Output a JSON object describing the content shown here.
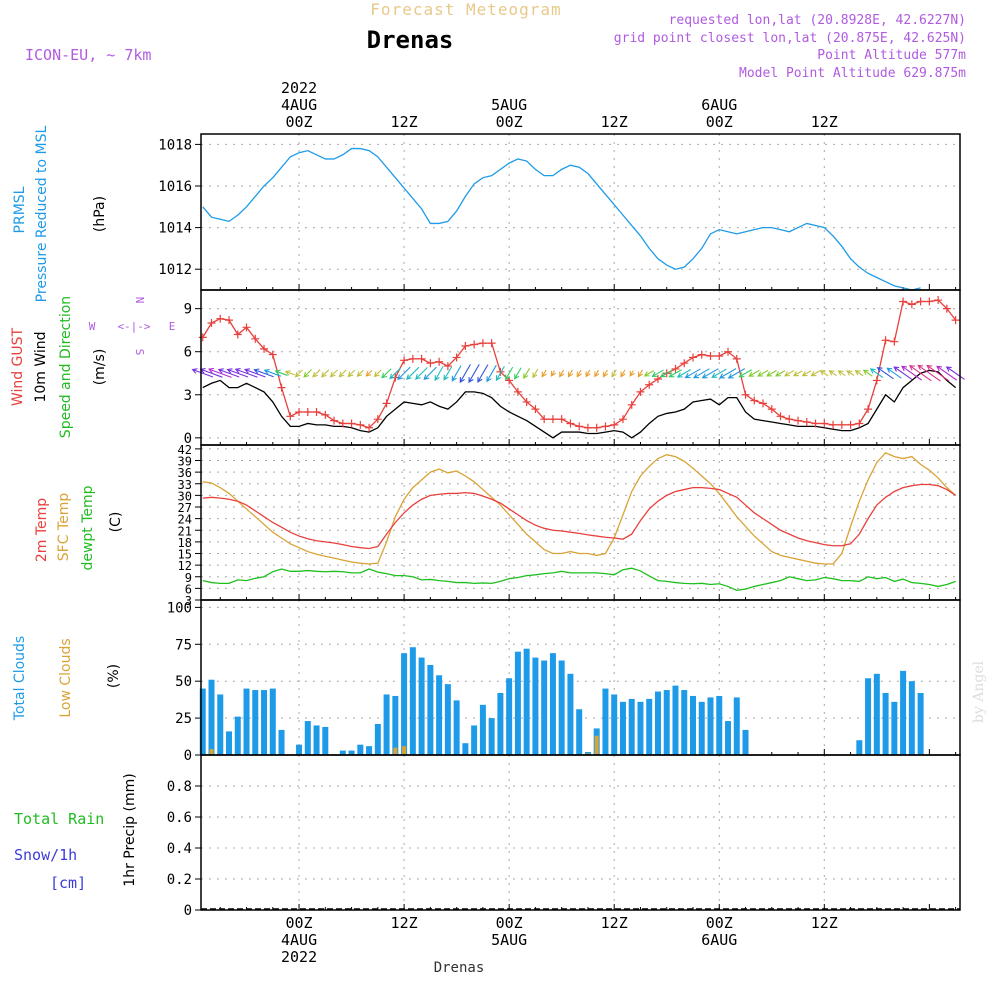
{
  "header": {
    "title": "Forecast Meteogram",
    "location": "Drenas",
    "model": "ICON-EU, ~ 7km",
    "requested": "requested lon,lat (20.8928E, 42.6227N)",
    "grid_point": "grid point closest lon,lat (20.875E, 42.625N)",
    "point_altitude": "Point Altitude 577m",
    "model_altitude": "Model Point Altitude 629.875m",
    "watermark": "by Angel"
  },
  "colors": {
    "pressure": "#1e9be8",
    "gust": "#e8403c",
    "wind": "#000000",
    "temp2m": "#e8403c",
    "sfc": "#d9a336",
    "dewpt": "#1fbf1f",
    "clouds": "#1e9be8",
    "lowclouds": "#d9a336",
    "purple": "#b05be0",
    "green": "#22bb22",
    "blue": "#3b3bdc"
  },
  "axis_time": {
    "top": [
      {
        "t": 0,
        "lines": [
          "2022",
          "4AUG",
          "00Z"
        ]
      },
      {
        "t": 12,
        "lines": [
          "12Z"
        ]
      },
      {
        "t": 24,
        "lines": [
          "5AUG",
          "00Z"
        ]
      },
      {
        "t": 36,
        "lines": [
          "12Z"
        ]
      },
      {
        "t": 48,
        "lines": [
          "6AUG",
          "00Z"
        ]
      },
      {
        "t": 60,
        "lines": [
          "12Z"
        ]
      }
    ],
    "bottom": [
      {
        "t": 0,
        "lines": [
          "00Z",
          "4AUG",
          "2022"
        ]
      },
      {
        "t": 12,
        "lines": [
          "12Z"
        ]
      },
      {
        "t": 24,
        "lines": [
          "00Z",
          "5AUG"
        ]
      },
      {
        "t": 36,
        "lines": [
          "12Z"
        ]
      },
      {
        "t": 48,
        "lines": [
          "00Z",
          "6AUG"
        ]
      },
      {
        "t": 60,
        "lines": [
          "12Z"
        ]
      }
    ],
    "bottom_label": "Drenas"
  },
  "panels_text": {
    "pressure": {
      "label1": "PRMSL",
      "label2": "Pressure Reduced to MSL",
      "unit": "(hPa)"
    },
    "wind": {
      "gust": "Wind GUST",
      "wind": "10m Wind",
      "dir": "Speed and Direction",
      "unit": "(m/s)",
      "compass_n": "N",
      "compass_s": "S",
      "compass_w": "W",
      "compass_e": "E"
    },
    "temp": {
      "t2m": "2m Temp",
      "sfc": "SFC Temp",
      "dew": "dewpt Temp",
      "unit": "(C)"
    },
    "clouds": {
      "total": "Total Clouds",
      "low": "Low Clouds",
      "unit": "(%)"
    },
    "precip": {
      "rain": "Total  Rain",
      "snow": "Snow/1h",
      "cm": "[cm]",
      "unit": "1hr Precip (mm)"
    }
  },
  "chart_data": [
    {
      "type": "line",
      "name": "pressure",
      "x_start": -11,
      "x_step": 1,
      "ylim": [
        1011,
        1018.5
      ],
      "yticks": [
        "1012",
        "1014",
        "1016",
        "1018"
      ],
      "values": [
        1015.0,
        1014.5,
        1014.4,
        1014.3,
        1014.6,
        1015.0,
        1015.5,
        1016.0,
        1016.4,
        1016.9,
        1017.4,
        1017.6,
        1017.7,
        1017.5,
        1017.3,
        1017.3,
        1017.5,
        1017.8,
        1017.8,
        1017.7,
        1017.4,
        1016.9,
        1016.4,
        1015.9,
        1015.4,
        1014.9,
        1014.2,
        1014.2,
        1014.3,
        1014.8,
        1015.5,
        1016.1,
        1016.4,
        1016.5,
        1016.8,
        1017.1,
        1017.3,
        1017.2,
        1016.8,
        1016.5,
        1016.5,
        1016.8,
        1017.0,
        1016.9,
        1016.6,
        1016.1,
        1015.6,
        1015.1,
        1014.6,
        1014.1,
        1013.6,
        1013.0,
        1012.5,
        1012.2,
        1012.0,
        1012.1,
        1012.5,
        1013.0,
        1013.7,
        1013.9,
        1013.8,
        1013.7,
        1013.8,
        1013.9,
        1014.0,
        1014.0,
        1013.9,
        1013.8,
        1014.0,
        1014.2,
        1014.1,
        1014.0,
        1013.6,
        1013.1,
        1012.5,
        1012.1,
        1011.8,
        1011.6,
        1011.4,
        1011.2,
        1011.1,
        1011.0,
        1011.1
      ]
    },
    {
      "type": "line",
      "name": "wind",
      "x_start": -11,
      "x_step": 1,
      "ylim": [
        -0.5,
        10.3
      ],
      "yticks": [
        "0",
        "3",
        "6",
        "9"
      ],
      "gust": [
        7.0,
        8.0,
        8.3,
        8.2,
        7.2,
        7.7,
        6.9,
        6.2,
        5.8,
        3.5,
        1.5,
        1.8,
        1.8,
        1.8,
        1.6,
        1.2,
        1.0,
        1.0,
        0.9,
        0.7,
        1.3,
        2.4,
        4.2,
        5.4,
        5.5,
        5.5,
        5.2,
        5.3,
        5.0,
        5.6,
        6.4,
        6.5,
        6.6,
        6.6,
        4.6,
        4.0,
        3.2,
        2.5,
        2.0,
        1.3,
        1.3,
        1.3,
        1.0,
        0.8,
        0.7,
        0.7,
        0.8,
        0.9,
        1.3,
        2.3,
        3.2,
        3.7,
        4.1,
        4.5,
        4.8,
        5.2,
        5.6,
        5.8,
        5.7,
        5.7,
        6.0,
        5.5,
        3.0,
        2.6,
        2.4,
        2.0,
        1.5,
        1.3,
        1.2,
        1.1,
        1.0,
        1.0,
        0.9,
        0.9,
        0.9,
        1.0,
        2.0,
        4.0,
        6.8,
        6.7,
        9.5,
        9.3,
        9.5,
        9.5,
        9.6,
        9.0,
        8.2
      ],
      "wind": [
        3.5,
        3.8,
        4.0,
        3.5,
        3.5,
        3.8,
        3.5,
        3.2,
        2.5,
        1.5,
        0.8,
        0.8,
        1.0,
        0.9,
        0.9,
        0.8,
        0.8,
        0.7,
        0.5,
        0.4,
        0.7,
        1.5,
        2.0,
        2.5,
        2.4,
        2.3,
        2.5,
        2.2,
        2.0,
        2.5,
        3.2,
        3.2,
        3.1,
        2.8,
        2.2,
        1.8,
        1.5,
        1.2,
        0.8,
        0.4,
        0.0,
        0.4,
        0.4,
        0.4,
        0.3,
        0.3,
        0.4,
        0.5,
        0.4,
        0.0,
        0.4,
        1.0,
        1.5,
        1.7,
        1.8,
        2.0,
        2.5,
        2.6,
        2.7,
        2.3,
        2.8,
        2.8,
        1.8,
        1.3,
        1.2,
        1.1,
        1.0,
        0.9,
        0.8,
        0.8,
        0.8,
        0.7,
        0.6,
        0.5,
        0.5,
        0.7,
        1.0,
        2.0,
        3.0,
        2.5,
        3.5,
        4.0,
        4.5,
        4.7,
        4.6,
        4.0,
        3.5
      ]
    },
    {
      "type": "line",
      "name": "temperature",
      "x_start": -11,
      "x_step": 1,
      "ylim": [
        3,
        43
      ],
      "yticks": [
        "3",
        "6",
        "9",
        "12",
        "15",
        "18",
        "21",
        "24",
        "27",
        "30",
        "33",
        "36",
        "39",
        "42"
      ],
      "t2m": [
        29.3,
        29.5,
        29.3,
        29.0,
        28.5,
        27.5,
        26.0,
        24.5,
        23.0,
        21.8,
        20.5,
        19.5,
        18.8,
        18.3,
        18.0,
        17.7,
        17.3,
        16.8,
        16.5,
        16.3,
        16.8,
        20.0,
        23.0,
        25.5,
        27.5,
        29.0,
        30.0,
        30.3,
        30.5,
        30.5,
        30.7,
        30.5,
        29.8,
        29.0,
        28.0,
        26.5,
        25.0,
        23.5,
        22.3,
        21.5,
        21.0,
        20.8,
        20.5,
        20.2,
        19.8,
        19.5,
        19.2,
        19.0,
        18.7,
        20.0,
        23.5,
        26.5,
        28.5,
        30.0,
        31.0,
        31.5,
        32.0,
        32.0,
        31.8,
        31.5,
        30.5,
        29.5,
        27.5,
        25.5,
        24.0,
        22.5,
        21.0,
        20.0,
        19.0,
        18.3,
        17.8,
        17.3,
        17.0,
        17.0,
        17.5,
        20.0,
        24.0,
        27.5,
        29.5,
        31.0,
        32.0,
        32.5,
        32.8,
        32.8,
        32.5,
        31.5,
        30.0
      ],
      "sfc": [
        33.5,
        33.2,
        32.0,
        30.5,
        28.5,
        26.5,
        24.5,
        22.5,
        20.5,
        19.0,
        17.5,
        16.5,
        15.5,
        14.8,
        14.3,
        13.8,
        13.3,
        12.8,
        12.5,
        12.3,
        12.5,
        18.0,
        24.5,
        29.0,
        32.0,
        34.0,
        36.0,
        36.8,
        35.8,
        36.3,
        35.0,
        33.5,
        31.5,
        29.5,
        27.5,
        25.0,
        22.5,
        20.0,
        18.0,
        16.0,
        15.0,
        15.0,
        15.5,
        15.0,
        15.0,
        14.5,
        15.0,
        19.0,
        25.0,
        31.0,
        35.0,
        37.5,
        39.5,
        40.5,
        40.0,
        38.8,
        37.0,
        35.0,
        33.0,
        30.5,
        27.5,
        24.5,
        22.0,
        19.5,
        17.5,
        15.5,
        14.5,
        14.0,
        13.5,
        13.0,
        12.5,
        12.3,
        12.3,
        15.0,
        22.0,
        28.5,
        34.0,
        38.5,
        41.0,
        40.0,
        39.5,
        40.0,
        38.0,
        36.5,
        34.5,
        32.0,
        30.0
      ],
      "dewpt": [
        8.0,
        7.5,
        7.3,
        7.3,
        8.2,
        8.0,
        8.6,
        9.0,
        10.3,
        11.0,
        10.4,
        10.4,
        10.6,
        10.4,
        10.3,
        10.4,
        10.3,
        10.0,
        10.0,
        11.0,
        10.2,
        9.8,
        9.3,
        9.3,
        9.0,
        8.2,
        8.3,
        8.0,
        7.8,
        7.5,
        7.5,
        7.3,
        7.4,
        7.3,
        7.8,
        8.5,
        8.8,
        9.3,
        9.5,
        9.8,
        10.0,
        10.4,
        10.0,
        10.0,
        10.0,
        10.0,
        9.8,
        9.5,
        10.8,
        11.2,
        10.5,
        9.2,
        8.0,
        7.8,
        7.5,
        7.3,
        7.2,
        7.3,
        7.0,
        7.2,
        6.5,
        5.5,
        5.8,
        6.5,
        7.0,
        7.5,
        8.0,
        9.0,
        8.5,
        8.0,
        8.2,
        8.8,
        8.5,
        8.0,
        8.0,
        7.8,
        9.0,
        8.5,
        8.8,
        7.8,
        8.4,
        7.5,
        7.3,
        7.0,
        6.5,
        7.0,
        7.8
      ]
    },
    {
      "type": "bar",
      "name": "clouds",
      "x_start": -11,
      "x_step": 1,
      "ylim": [
        0,
        105
      ],
      "yticks": [
        "0",
        "25",
        "50",
        "75",
        "100"
      ],
      "total": [
        45,
        51,
        41,
        16,
        26,
        45,
        44,
        44,
        45,
        17,
        0,
        7,
        23,
        20,
        19,
        0,
        3,
        3,
        7,
        6,
        21,
        41,
        40,
        69,
        73,
        66,
        61,
        54,
        48,
        37,
        8,
        20,
        34,
        25,
        42,
        52,
        70,
        72,
        66,
        64,
        69,
        64,
        55,
        31,
        2,
        18,
        45,
        41,
        36,
        38,
        36,
        38,
        43,
        44,
        47,
        44,
        40,
        36,
        39,
        40,
        23,
        39,
        17,
        0,
        0,
        0,
        0,
        0,
        0,
        0,
        0,
        0,
        0,
        0,
        0,
        10,
        52,
        55,
        42,
        36,
        57,
        50,
        42
      ],
      "low": [
        0,
        4,
        0,
        0,
        0,
        0,
        0,
        0,
        0,
        0,
        0,
        0,
        0,
        0,
        0,
        0,
        0,
        0,
        0,
        0,
        0,
        0,
        5,
        6,
        0,
        0,
        0,
        0,
        0,
        0,
        0,
        0,
        0,
        0,
        0,
        0,
        0,
        0,
        0,
        0,
        0,
        0,
        0,
        0,
        1,
        13,
        0,
        0,
        0,
        0,
        0,
        0,
        0,
        0,
        0,
        0,
        0,
        0,
        0,
        0,
        0,
        0,
        0,
        0,
        0,
        0,
        0,
        0,
        0,
        0,
        0,
        0,
        0,
        0,
        0,
        0,
        0,
        0,
        0,
        0,
        0,
        0,
        0
      ]
    },
    {
      "type": "bar",
      "name": "precip",
      "ylim": [
        0,
        1.0
      ],
      "yticks": [
        "0",
        "0.2",
        "0.4",
        "0.6",
        "0.8"
      ],
      "values": []
    }
  ]
}
